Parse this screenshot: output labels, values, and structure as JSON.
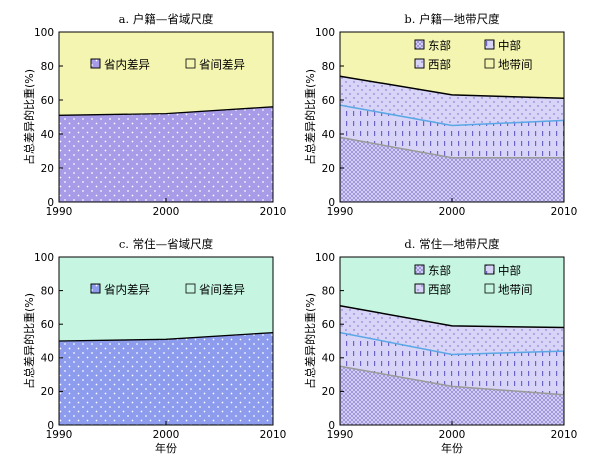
{
  "chart_data": [
    {
      "type": "area",
      "stacked": true,
      "title": "a. 户籍—省域尺度",
      "xlabel": "",
      "ylabel": "占总差异的比重(%)",
      "x": [
        1990,
        2000,
        2010
      ],
      "x_ticks": [
        "1990",
        "2000",
        "2010"
      ],
      "y_ticks": [
        "0",
        "20",
        "40",
        "60",
        "80",
        "100"
      ],
      "xlim": [
        1990,
        2010
      ],
      "ylim": [
        0,
        100
      ],
      "legend_position": "top",
      "legend_columns": 2,
      "series": [
        {
          "name": "省内差异",
          "values": [
            51,
            52,
            56
          ],
          "color": "#a89be8",
          "pattern": "dots"
        },
        {
          "name": "省间差异",
          "values": [
            49,
            48,
            44
          ],
          "color": "#f3f5b1",
          "pattern": "solid"
        }
      ]
    },
    {
      "type": "area",
      "stacked": true,
      "title": "b. 户籍—地带尺度",
      "xlabel": "",
      "ylabel": "占总差异的比重(%)",
      "x": [
        1990,
        2000,
        2010
      ],
      "x_ticks": [
        "1990",
        "2000",
        "2010"
      ],
      "y_ticks": [
        "0",
        "20",
        "40",
        "60",
        "80",
        "100"
      ],
      "xlim": [
        1990,
        2010
      ],
      "ylim": [
        0,
        100
      ],
      "legend_position": "top",
      "legend_columns": 2,
      "series": [
        {
          "name": "东部",
          "values": [
            38,
            26,
            26
          ],
          "color": "#d7d4f7",
          "pattern": "crosshatch"
        },
        {
          "name": "中部",
          "values": [
            19,
            19,
            22
          ],
          "color": "#d7d4f7",
          "pattern": "dashes"
        },
        {
          "name": "西部",
          "values": [
            17,
            18,
            13
          ],
          "color": "#d7d4f7",
          "pattern": "sparse-dots"
        },
        {
          "name": "地带间",
          "values": [
            26,
            37,
            39
          ],
          "color": "#f3f5b1",
          "pattern": "solid"
        }
      ]
    },
    {
      "type": "area",
      "stacked": true,
      "title": "c. 常住—省域尺度",
      "xlabel": "年份",
      "ylabel": "占总差异的比重(%)",
      "x": [
        1990,
        2000,
        2010
      ],
      "x_ticks": [
        "1990",
        "2000",
        "2010"
      ],
      "y_ticks": [
        "0",
        "20",
        "40",
        "60",
        "80",
        "100"
      ],
      "xlim": [
        1990,
        2010
      ],
      "ylim": [
        0,
        100
      ],
      "legend_position": "top",
      "legend_columns": 2,
      "series": [
        {
          "name": "省内差异",
          "values": [
            50,
            51,
            55
          ],
          "color": "#8e9ced",
          "pattern": "dots"
        },
        {
          "name": "省间差异",
          "values": [
            50,
            49,
            45
          ],
          "color": "#c6f6e2",
          "pattern": "solid"
        }
      ]
    },
    {
      "type": "area",
      "stacked": true,
      "title": "d. 常住—地带尺度",
      "xlabel": "年份",
      "ylabel": "占总差异的比重(%)",
      "x": [
        1990,
        2000,
        2010
      ],
      "x_ticks": [
        "1990",
        "2000",
        "2010"
      ],
      "y_ticks": [
        "0",
        "20",
        "40",
        "60",
        "80",
        "100"
      ],
      "xlim": [
        1990,
        2010
      ],
      "ylim": [
        0,
        100
      ],
      "legend_position": "top",
      "legend_columns": 2,
      "series": [
        {
          "name": "东部",
          "values": [
            35,
            23,
            18
          ],
          "color": "#d7d4f7",
          "pattern": "crosshatch"
        },
        {
          "name": "中部",
          "values": [
            20,
            19,
            26
          ],
          "color": "#d7d4f7",
          "pattern": "dashes"
        },
        {
          "name": "西部",
          "values": [
            16,
            17,
            14
          ],
          "color": "#d7d4f7",
          "pattern": "sparse-dots"
        },
        {
          "name": "地带间",
          "values": [
            29,
            41,
            42
          ],
          "color": "#c6f6e2",
          "pattern": "solid"
        }
      ]
    }
  ]
}
